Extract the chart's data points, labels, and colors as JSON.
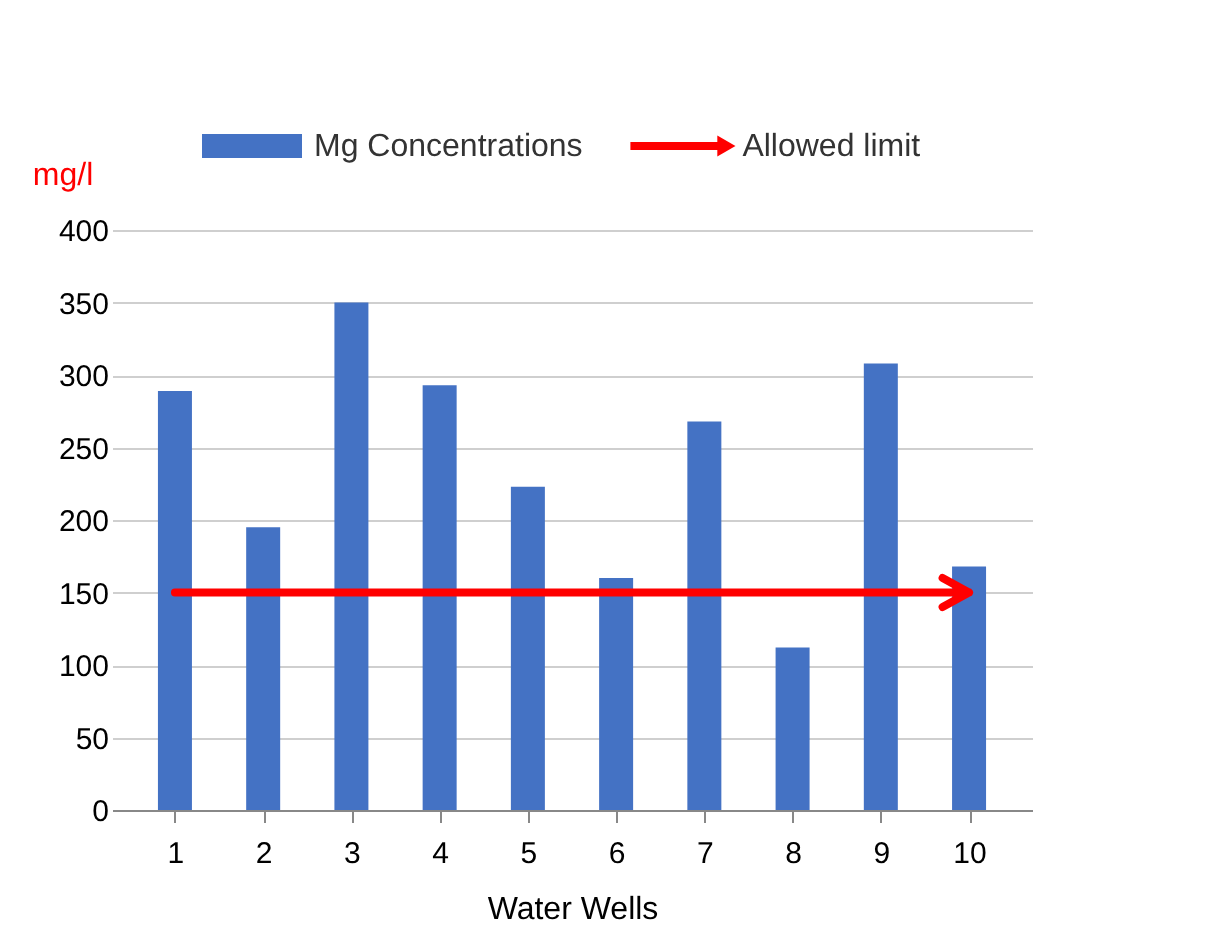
{
  "chart_data": {
    "type": "bar",
    "xlabel": "Water Wells",
    "ylabel": "mg/l",
    "categories": [
      "1",
      "2",
      "3",
      "4",
      "5",
      "6",
      "7",
      "8",
      "9",
      "10"
    ],
    "series": [
      {
        "name": "Mg Concentrations",
        "color": "#4472c4",
        "values": [
          289,
          195,
          350,
          293,
          223,
          160,
          268,
          112,
          308,
          168
        ]
      }
    ],
    "ylim": [
      0,
      400
    ],
    "yticks": [
      0,
      50,
      100,
      150,
      200,
      250,
      300,
      350,
      400
    ],
    "grid": "y",
    "legend": "top",
    "ref_lines": [
      {
        "axis": "y",
        "value": 150,
        "label": "Allowed limit",
        "color": "#ff0000"
      }
    ]
  }
}
